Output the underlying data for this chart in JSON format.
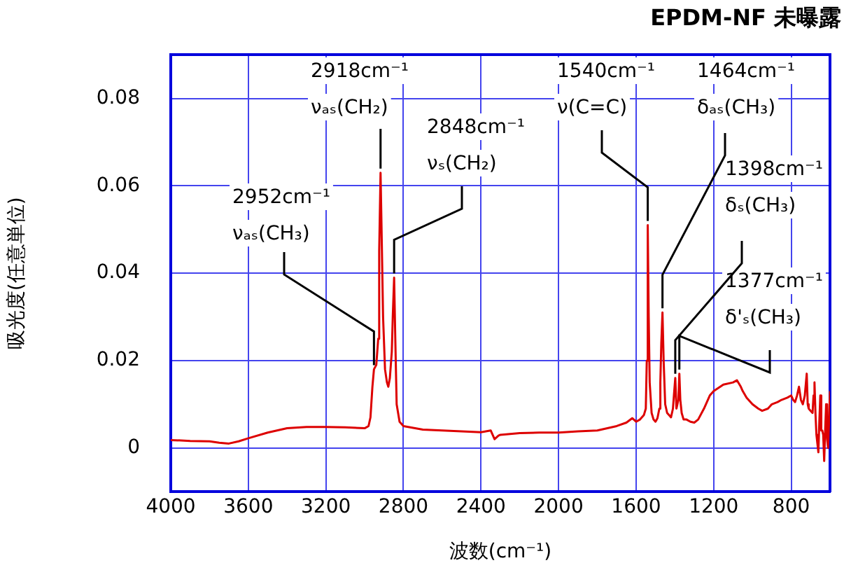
{
  "chart_data": {
    "type": "line",
    "title": "EPDM-NF 未曝露",
    "xlabel": "波数(cm⁻¹)",
    "ylabel": "吸光度(任意単位)",
    "x": [
      4000,
      3900,
      3800,
      3750,
      3700,
      3650,
      3600,
      3500,
      3400,
      3300,
      3200,
      3100,
      3000,
      2980,
      2970,
      2960,
      2952,
      2940,
      2930,
      2925,
      2918,
      2912,
      2905,
      2895,
      2885,
      2878,
      2870,
      2860,
      2855,
      2848,
      2842,
      2835,
      2820,
      2800,
      2700,
      2600,
      2500,
      2400,
      2350,
      2330,
      2310,
      2300,
      2200,
      2100,
      2000,
      1900,
      1800,
      1700,
      1650,
      1620,
      1600,
      1580,
      1560,
      1550,
      1545,
      1540,
      1535,
      1530,
      1520,
      1510,
      1500,
      1490,
      1480,
      1475,
      1470,
      1464,
      1458,
      1450,
      1440,
      1430,
      1420,
      1410,
      1405,
      1398,
      1392,
      1387,
      1382,
      1377,
      1372,
      1365,
      1355,
      1340,
      1320,
      1300,
      1280,
      1250,
      1220,
      1200,
      1150,
      1100,
      1080,
      1060,
      1050,
      1030,
      1000,
      970,
      950,
      920,
      900,
      870,
      850,
      820,
      800,
      790,
      780,
      770,
      760,
      750,
      740,
      730,
      720,
      715,
      710,
      700,
      690,
      685,
      680,
      675,
      670,
      665,
      660,
      655,
      650,
      645,
      640,
      635,
      630,
      625,
      620,
      615,
      610,
      605,
      600
    ],
    "values": [
      0.0018,
      0.0016,
      0.0015,
      0.0012,
      0.001,
      0.0015,
      0.0022,
      0.0035,
      0.0045,
      0.0048,
      0.0048,
      0.0047,
      0.0045,
      0.005,
      0.007,
      0.014,
      0.018,
      0.019,
      0.025,
      0.045,
      0.063,
      0.048,
      0.03,
      0.018,
      0.015,
      0.014,
      0.016,
      0.022,
      0.03,
      0.039,
      0.025,
      0.01,
      0.006,
      0.005,
      0.0042,
      0.004,
      0.0038,
      0.0036,
      0.004,
      0.002,
      0.0028,
      0.003,
      0.0034,
      0.0035,
      0.0035,
      0.0038,
      0.004,
      0.005,
      0.0058,
      0.0068,
      0.006,
      0.0065,
      0.0075,
      0.009,
      0.02,
      0.051,
      0.03,
      0.015,
      0.008,
      0.0065,
      0.006,
      0.0068,
      0.009,
      0.015,
      0.024,
      0.031,
      0.02,
      0.01,
      0.008,
      0.0075,
      0.007,
      0.009,
      0.012,
      0.016,
      0.009,
      0.009,
      0.011,
      0.017,
      0.011,
      0.008,
      0.0065,
      0.0065,
      0.006,
      0.0058,
      0.0065,
      0.009,
      0.012,
      0.013,
      0.0145,
      0.015,
      0.0155,
      0.014,
      0.013,
      0.0115,
      0.01,
      0.009,
      0.0085,
      0.009,
      0.01,
      0.0105,
      0.011,
      0.0115,
      0.012,
      0.011,
      0.0105,
      0.012,
      0.014,
      0.011,
      0.01,
      0.012,
      0.017,
      0.01,
      0.009,
      0.0085,
      0.008,
      0.012,
      0.015,
      0.008,
      0.003,
      0.001,
      -0.001,
      0.006,
      0.012,
      0.004,
      0.004,
      0.003,
      -0.003,
      0.004,
      0.01,
      0.002,
      0,
      0.006,
      0.013
    ],
    "color": "#dd0000",
    "xlim": [
      4000,
      600
    ],
    "xticks": [
      4000,
      3600,
      3200,
      2800,
      2400,
      2000,
      1600,
      1200,
      800
    ],
    "ylim": [
      -0.01,
      0.09
    ],
    "yticks": [
      0,
      0.02,
      0.04,
      0.06,
      0.08
    ],
    "grid": true,
    "legend": false,
    "marker": "none",
    "line_style": "solid",
    "annotations": [
      {
        "text": "2952cm⁻¹\nνₐₛ(CH₃)",
        "x": 2952,
        "y": 0.018
      },
      {
        "text": "2918cm⁻¹\nνₐₛ(CH₂)",
        "x": 2918,
        "y": 0.063
      },
      {
        "text": "2848cm⁻¹\nνₛ(CH₂)",
        "x": 2848,
        "y": 0.039
      },
      {
        "text": "1540cm⁻¹\nν(C=C)",
        "x": 1540,
        "y": 0.051
      },
      {
        "text": "1464cm⁻¹\nδₐₛ(CH₃)",
        "x": 1464,
        "y": 0.031
      },
      {
        "text": "1398cm⁻¹\nδₛ(CH₃)",
        "x": 1398,
        "y": 0.016
      },
      {
        "text": "1377cm⁻¹\nδ'ₛ(CH₃)",
        "x": 1377,
        "y": 0.017
      }
    ]
  }
}
